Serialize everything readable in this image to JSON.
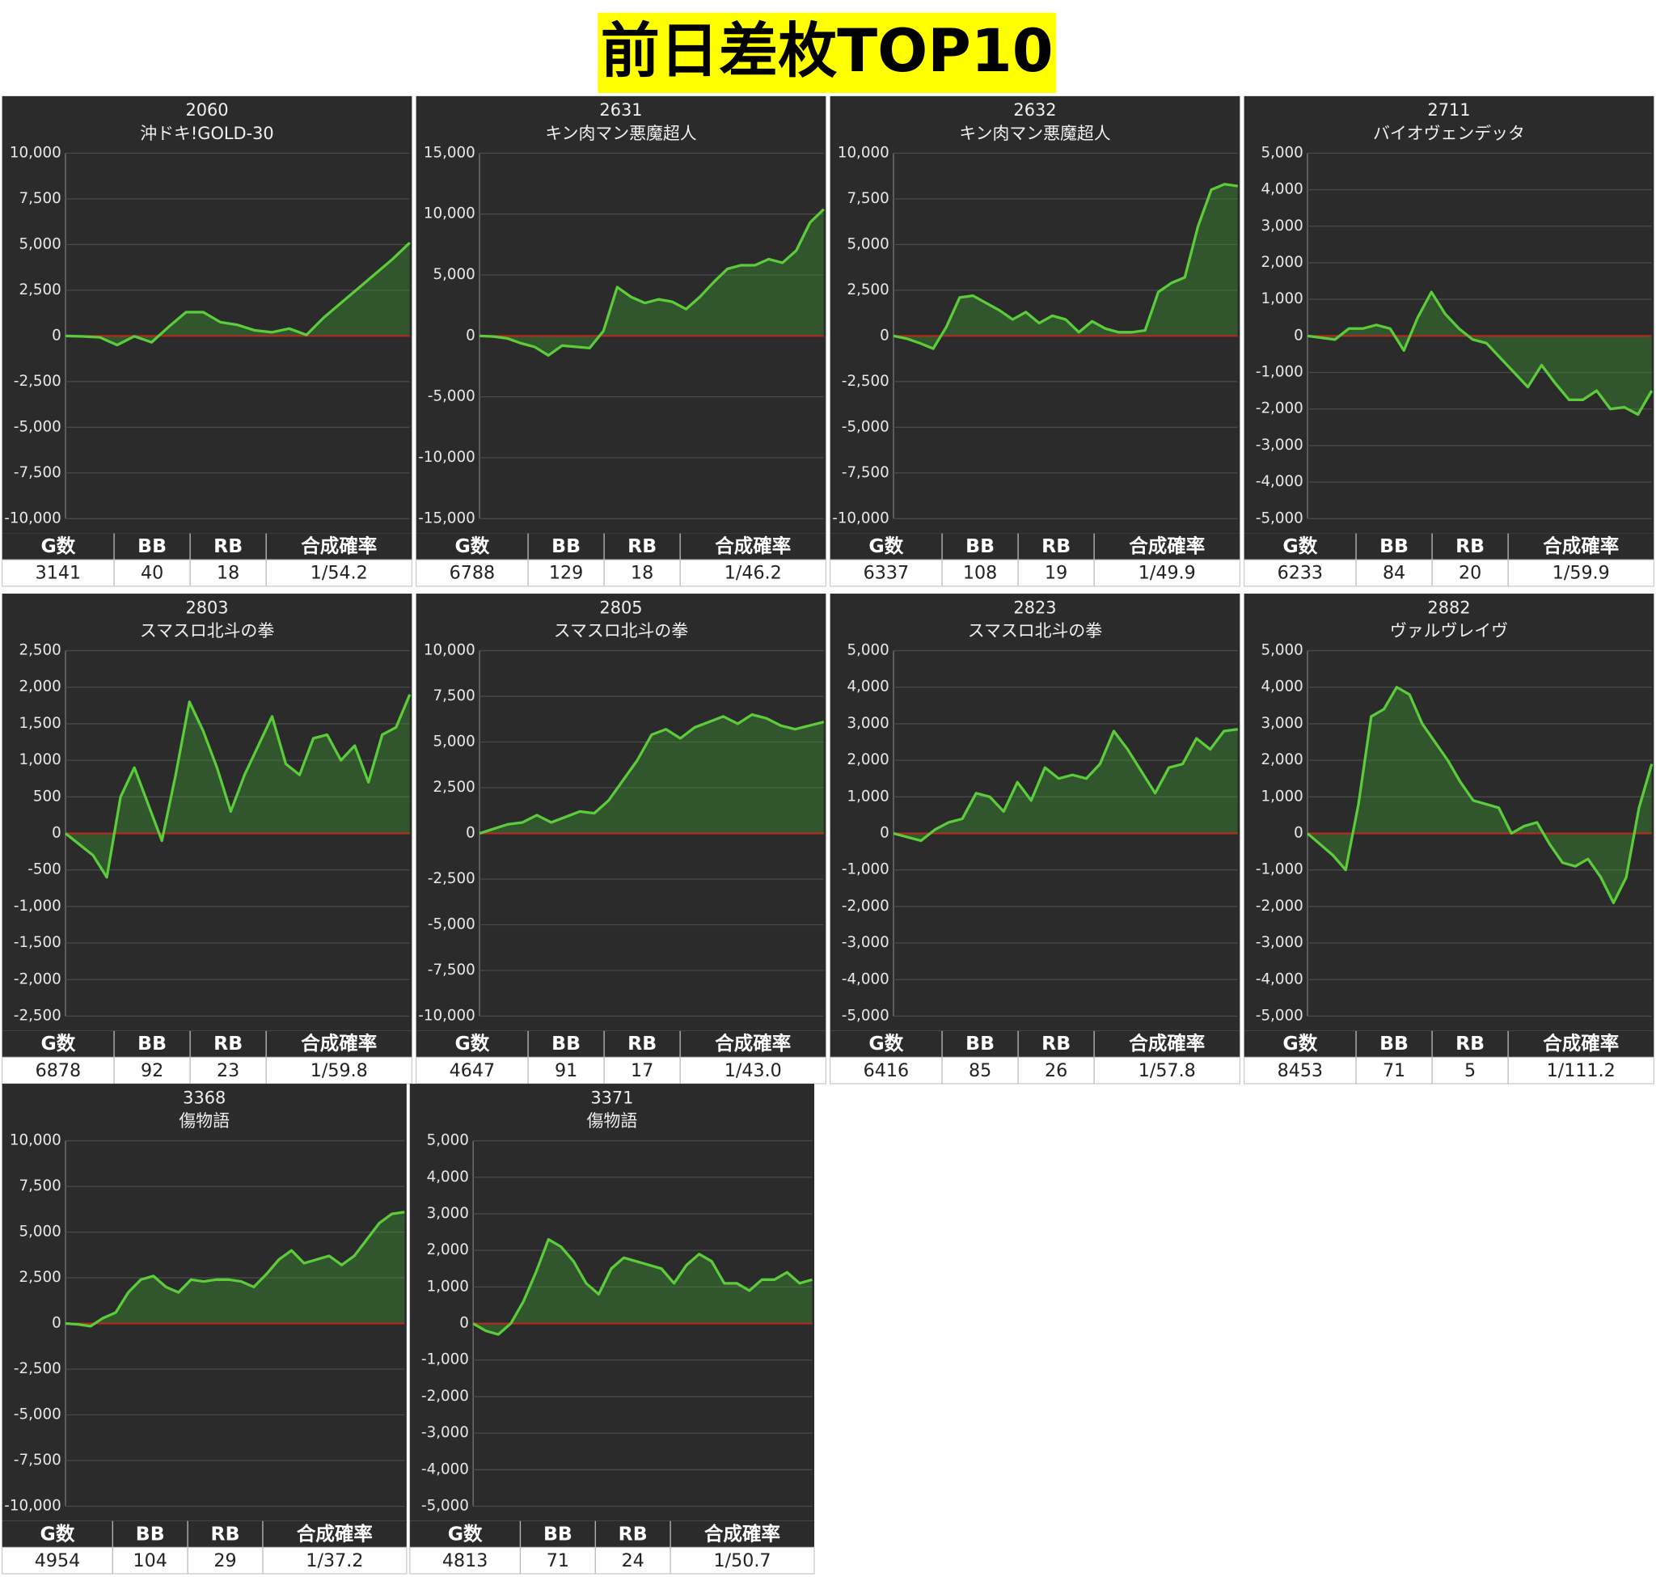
{
  "title": "前日差枚TOP10",
  "stats_headers": [
    "G数",
    "BB",
    "RB",
    "合成確率"
  ],
  "chart_data": [
    {
      "type": "line",
      "title": "2060",
      "subtitle": "沖ドキ!GOLD-30",
      "color": "#5ccd3a",
      "grid": true,
      "ylim": [
        -10000,
        10000
      ],
      "yticks": [
        {
          "value": -10000,
          "label": "-10,000"
        },
        {
          "value": -7500,
          "label": "-7,500"
        },
        {
          "value": -5000,
          "label": "-5,000"
        },
        {
          "value": -2500,
          "label": "-2,500"
        },
        0,
        {
          "value": 2500,
          "label": "2,500"
        },
        {
          "value": 5000,
          "label": "5,000"
        },
        {
          "value": 7500,
          "label": "7,500"
        },
        {
          "value": 10000,
          "label": "10,000"
        }
      ],
      "values": [
        0,
        -30,
        -80,
        -500,
        -20,
        -350,
        500,
        1300,
        1300,
        750,
        600,
        300,
        200,
        400,
        50,
        1000,
        1800,
        2600,
        3400,
        4200,
        5100
      ],
      "stats": [
        3141,
        40,
        18,
        "1/54.2"
      ]
    },
    {
      "type": "line",
      "title": "2631",
      "subtitle": "キン肉マン悪魔超人",
      "color": "#5ccd3a",
      "grid": true,
      "ylim": [
        -15000,
        15000
      ],
      "yticks": [
        {
          "value": -15000,
          "label": "-15,000"
        },
        {
          "value": -10000,
          "label": "-10,000"
        },
        {
          "value": -5000,
          "label": "-5,000"
        },
        0,
        {
          "value": 5000,
          "label": "5,000"
        },
        {
          "value": 10000,
          "label": "10,000"
        },
        {
          "value": 15000,
          "label": "15,000"
        }
      ],
      "values": [
        0,
        -50,
        -200,
        -600,
        -900,
        -1600,
        -800,
        -900,
        -1000,
        400,
        4000,
        3200,
        2700,
        3000,
        2800,
        2200,
        3200,
        4400,
        5500,
        5800,
        5800,
        6300,
        6000,
        7000,
        9300,
        10400
      ],
      "stats": [
        6788,
        129,
        18,
        "1/46.2"
      ]
    },
    {
      "type": "line",
      "title": "2632",
      "subtitle": "キン肉マン悪魔超人",
      "color": "#5ccd3a",
      "grid": true,
      "ylim": [
        -10000,
        10000
      ],
      "yticks": [
        {
          "value": -10000,
          "label": "-10,000"
        },
        {
          "value": -7500,
          "label": "-7,500"
        },
        {
          "value": -5000,
          "label": "-5,000"
        },
        {
          "value": -2500,
          "label": "-2,500"
        },
        0,
        {
          "value": 2500,
          "label": "2,500"
        },
        {
          "value": 5000,
          "label": "5,000"
        },
        {
          "value": 7500,
          "label": "7,500"
        },
        {
          "value": 10000,
          "label": "10,000"
        }
      ],
      "values": [
        0,
        -150,
        -400,
        -700,
        500,
        2100,
        2200,
        1800,
        1400,
        900,
        1300,
        700,
        1100,
        900,
        200,
        800,
        400,
        200,
        200,
        300,
        2400,
        2900,
        3200,
        6000,
        8000,
        8300,
        8200
      ],
      "stats": [
        6337,
        108,
        19,
        "1/49.9"
      ]
    },
    {
      "type": "line",
      "title": "2711",
      "subtitle": "バイオヴェンデッタ",
      "color": "#5ccd3a",
      "grid": true,
      "ylim": [
        -5000,
        5000
      ],
      "yticks": [
        {
          "value": -5000,
          "label": "-5,000"
        },
        {
          "value": -4000,
          "label": "-4,000"
        },
        {
          "value": -3000,
          "label": "-3,000"
        },
        {
          "value": -2000,
          "label": "-2,000"
        },
        {
          "value": -1000,
          "label": "-1,000"
        },
        0,
        {
          "value": 1000,
          "label": "1,000"
        },
        {
          "value": 2000,
          "label": "2,000"
        },
        {
          "value": 3000,
          "label": "3,000"
        },
        {
          "value": 4000,
          "label": "4,000"
        },
        {
          "value": 5000,
          "label": "5,000"
        }
      ],
      "values": [
        0,
        -50,
        -100,
        200,
        200,
        300,
        200,
        -400,
        500,
        1200,
        600,
        200,
        -100,
        -200,
        -600,
        -1000,
        -1400,
        -800,
        -1300,
        -1750,
        -1750,
        -1500,
        -2000,
        -1950,
        -2150,
        -1500
      ],
      "stats": [
        6233,
        84,
        20,
        "1/59.9"
      ]
    },
    {
      "type": "line",
      "title": "2803",
      "subtitle": "スマスロ北斗の拳",
      "color": "#5ccd3a",
      "grid": true,
      "ylim": [
        -2500,
        2500
      ],
      "yticks": [
        {
          "value": -2500,
          "label": "-2,500"
        },
        {
          "value": -2000,
          "label": "-2,000"
        },
        {
          "value": -1500,
          "label": "-1,500"
        },
        {
          "value": -1000,
          "label": "-1,000"
        },
        -500,
        0,
        500,
        {
          "value": 1000,
          "label": "1,000"
        },
        {
          "value": 1500,
          "label": "1,500"
        },
        {
          "value": 2000,
          "label": "2,000"
        },
        {
          "value": 2500,
          "label": "2,500"
        }
      ],
      "values": [
        0,
        -150,
        -300,
        -600,
        500,
        900,
        400,
        -100,
        800,
        1800,
        1400,
        900,
        300,
        800,
        1200,
        1600,
        950,
        800,
        1300,
        1350,
        1000,
        1200,
        700,
        1350,
        1450,
        1900
      ],
      "stats": [
        6878,
        92,
        23,
        "1/59.8"
      ]
    },
    {
      "type": "line",
      "title": "2805",
      "subtitle": "スマスロ北斗の拳",
      "color": "#5ccd3a",
      "grid": true,
      "ylim": [
        -10000,
        10000
      ],
      "yticks": [
        {
          "value": -10000,
          "label": "-10,000"
        },
        {
          "value": -7500,
          "label": "-7,500"
        },
        {
          "value": -5000,
          "label": "-5,000"
        },
        {
          "value": -2500,
          "label": "-2,500"
        },
        0,
        {
          "value": 2500,
          "label": "2,500"
        },
        {
          "value": 5000,
          "label": "5,000"
        },
        {
          "value": 7500,
          "label": "7,500"
        },
        {
          "value": 10000,
          "label": "10,000"
        }
      ],
      "values": [
        0,
        250,
        500,
        600,
        1000,
        600,
        900,
        1200,
        1100,
        1800,
        2900,
        4000,
        5400,
        5700,
        5200,
        5800,
        6100,
        6400,
        6000,
        6500,
        6300,
        5900,
        5700,
        5900,
        6100
      ],
      "stats": [
        4647,
        91,
        17,
        "1/43.0"
      ]
    },
    {
      "type": "line",
      "title": "2823",
      "subtitle": "スマスロ北斗の拳",
      "color": "#5ccd3a",
      "grid": true,
      "ylim": [
        -5000,
        5000
      ],
      "yticks": [
        {
          "value": -5000,
          "label": "-5,000"
        },
        {
          "value": -4000,
          "label": "-4,000"
        },
        {
          "value": -3000,
          "label": "-3,000"
        },
        {
          "value": -2000,
          "label": "-2,000"
        },
        {
          "value": -1000,
          "label": "-1,000"
        },
        0,
        {
          "value": 1000,
          "label": "1,000"
        },
        {
          "value": 2000,
          "label": "2,000"
        },
        {
          "value": 3000,
          "label": "3,000"
        },
        {
          "value": 4000,
          "label": "4,000"
        },
        {
          "value": 5000,
          "label": "5,000"
        }
      ],
      "values": [
        0,
        -100,
        -200,
        100,
        300,
        400,
        1100,
        1000,
        600,
        1400,
        900,
        1800,
        1500,
        1600,
        1500,
        1900,
        2800,
        2300,
        1700,
        1100,
        1800,
        1900,
        2600,
        2300,
        2800,
        2850
      ],
      "stats": [
        6416,
        85,
        26,
        "1/57.8"
      ]
    },
    {
      "type": "line",
      "title": "2882",
      "subtitle": "ヴァルヴレイヴ",
      "color": "#5ccd3a",
      "grid": true,
      "ylim": [
        -5000,
        5000
      ],
      "yticks": [
        {
          "value": -5000,
          "label": "-5,000"
        },
        {
          "value": -4000,
          "label": "-4,000"
        },
        {
          "value": -3000,
          "label": "-3,000"
        },
        {
          "value": -2000,
          "label": "-2,000"
        },
        {
          "value": -1000,
          "label": "-1,000"
        },
        0,
        {
          "value": 1000,
          "label": "1,000"
        },
        {
          "value": 2000,
          "label": "2,000"
        },
        {
          "value": 3000,
          "label": "3,000"
        },
        {
          "value": 4000,
          "label": "4,000"
        },
        {
          "value": 5000,
          "label": "5,000"
        }
      ],
      "values": [
        0,
        -300,
        -600,
        -1000,
        800,
        3200,
        3400,
        4000,
        3800,
        3000,
        2500,
        2000,
        1400,
        900,
        800,
        700,
        0,
        200,
        300,
        -300,
        -800,
        -900,
        -700,
        -1200,
        -1900,
        -1200,
        700,
        1900
      ],
      "stats": [
        8453,
        71,
        5,
        "1/111.2"
      ]
    },
    {
      "type": "line",
      "title": "3368",
      "subtitle": "傷物語",
      "color": "#5ccd3a",
      "grid": true,
      "ylim": [
        -10000,
        10000
      ],
      "yticks": [
        {
          "value": -10000,
          "label": "-10,000"
        },
        {
          "value": -7500,
          "label": "-7,500"
        },
        {
          "value": -5000,
          "label": "-5,000"
        },
        {
          "value": -2500,
          "label": "-2,500"
        },
        0,
        {
          "value": 2500,
          "label": "2,500"
        },
        {
          "value": 5000,
          "label": "5,000"
        },
        {
          "value": 7500,
          "label": "7,500"
        },
        {
          "value": 10000,
          "label": "10,000"
        }
      ],
      "values": [
        0,
        -50,
        -150,
        300,
        600,
        1700,
        2400,
        2600,
        2000,
        1700,
        2400,
        2300,
        2400,
        2400,
        2300,
        2000,
        2700,
        3500,
        4000,
        3300,
        3500,
        3700,
        3200,
        3700,
        4600,
        5500,
        6000,
        6100
      ],
      "stats": [
        4954,
        104,
        29,
        "1/37.2"
      ]
    },
    {
      "type": "line",
      "title": "3371",
      "subtitle": "傷物語",
      "color": "#5ccd3a",
      "grid": true,
      "ylim": [
        -5000,
        5000
      ],
      "yticks": [
        {
          "value": -5000,
          "label": "-5,000"
        },
        {
          "value": -4000,
          "label": "-4,000"
        },
        {
          "value": -3000,
          "label": "-3,000"
        },
        {
          "value": -2000,
          "label": "-2,000"
        },
        {
          "value": -1000,
          "label": "-1,000"
        },
        0,
        {
          "value": 1000,
          "label": "1,000"
        },
        {
          "value": 2000,
          "label": "2,000"
        },
        {
          "value": 3000,
          "label": "3,000"
        },
        {
          "value": 4000,
          "label": "4,000"
        },
        {
          "value": 5000,
          "label": "5,000"
        }
      ],
      "values": [
        0,
        -200,
        -300,
        0,
        600,
        1400,
        2300,
        2100,
        1700,
        1100,
        800,
        1500,
        1800,
        1700,
        1600,
        1500,
        1100,
        1600,
        1900,
        1700,
        1100,
        1100,
        900,
        1200,
        1200,
        1400,
        1100,
        1200
      ],
      "stats": [
        4813,
        71,
        24,
        "1/50.7"
      ]
    }
  ]
}
